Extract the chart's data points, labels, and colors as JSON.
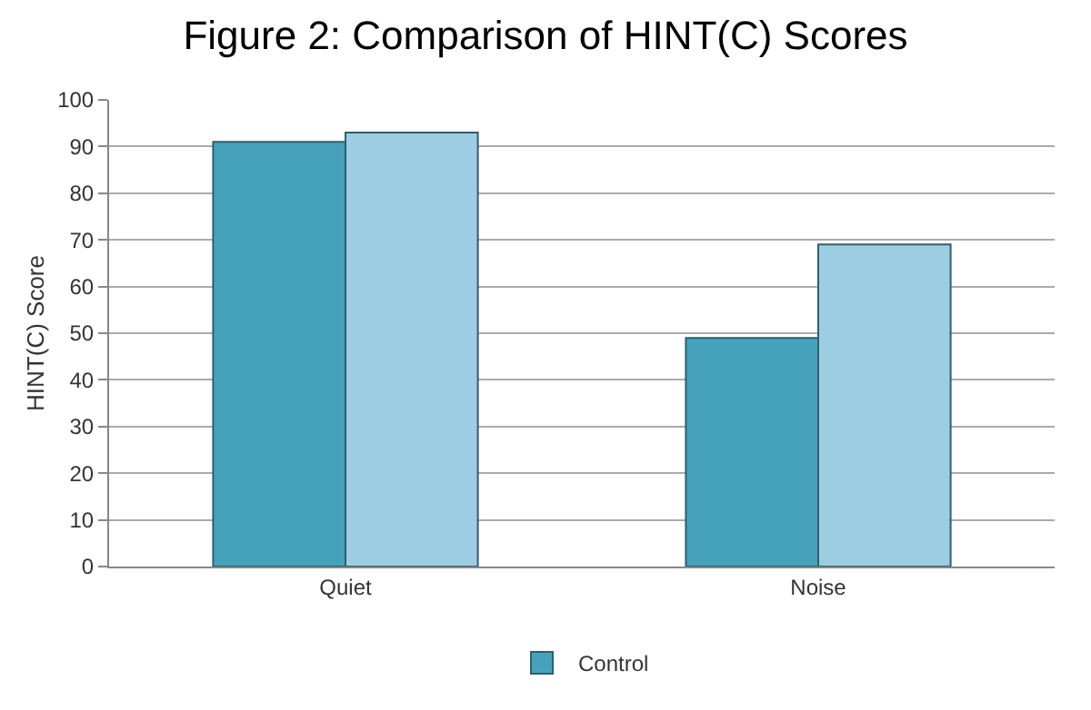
{
  "chart_data": {
    "type": "bar",
    "title": "Figure 2: Comparison of HINT(C) Scores",
    "ylabel": "HINT(C) Score",
    "categories": [
      "Quiet",
      "Noise"
    ],
    "series": [
      {
        "name": "Control",
        "color": "#46a2bb",
        "values": [
          91,
          49
        ]
      },
      {
        "color": "#9ccde2",
        "values": [
          93,
          69
        ]
      }
    ],
    "ylim": [
      0,
      100
    ],
    "yticks": [
      0,
      10,
      20,
      30,
      40,
      50,
      60,
      70,
      80,
      90,
      100
    ],
    "grid": "y",
    "legend": "bottom"
  }
}
